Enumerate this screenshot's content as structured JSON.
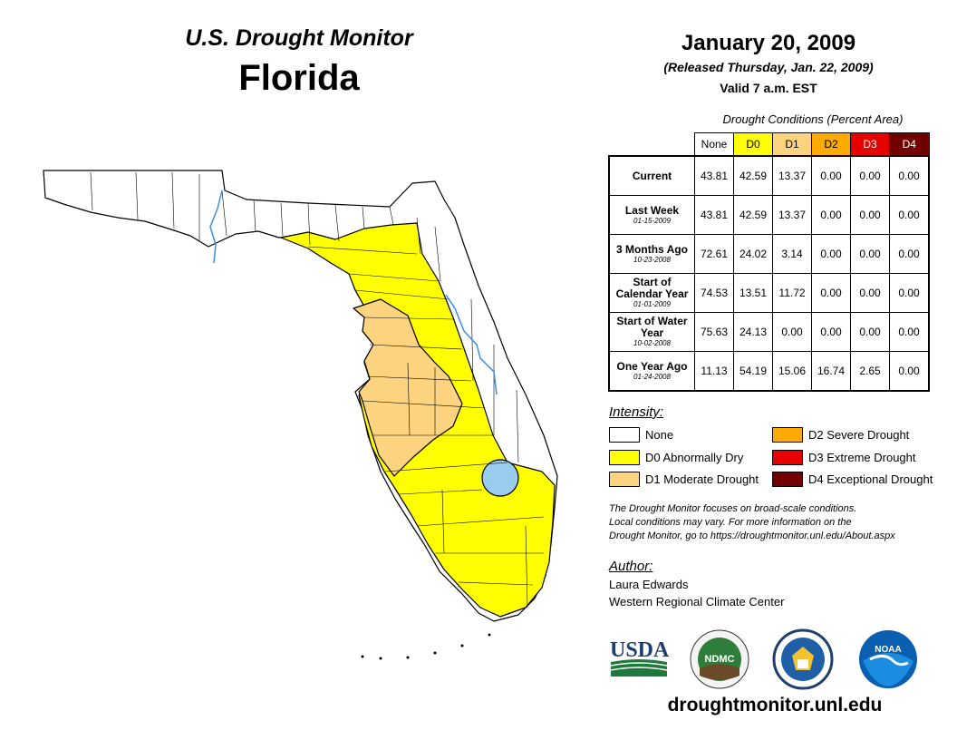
{
  "header": {
    "monitor_title": "U.S. Drought Monitor",
    "state": "Florida",
    "date": "January 20, 2009",
    "released": "(Released Thursday, Jan. 22, 2009)",
    "valid": "Valid 7 a.m. EST"
  },
  "table": {
    "caption": "Drought Conditions (Percent Area)",
    "columns": [
      "None",
      "D0",
      "D1",
      "D2",
      "D3",
      "D4"
    ],
    "rows": [
      {
        "label": "Current",
        "date": "",
        "values": [
          "43.81",
          "42.59",
          "13.37",
          "0.00",
          "0.00",
          "0.00"
        ]
      },
      {
        "label": "Last Week",
        "date": "01-15-2009",
        "values": [
          "43.81",
          "42.59",
          "13.37",
          "0.00",
          "0.00",
          "0.00"
        ]
      },
      {
        "label": "3 Months Ago",
        "date": "10-23-2008",
        "values": [
          "72.61",
          "24.02",
          "3.14",
          "0.00",
          "0.00",
          "0.00"
        ]
      },
      {
        "label": "Start of Calendar Year",
        "date": "01-01-2009",
        "values": [
          "74.53",
          "13.51",
          "11.72",
          "0.00",
          "0.00",
          "0.00"
        ]
      },
      {
        "label": "Start of Water Year",
        "date": "10-02-2008",
        "values": [
          "75.63",
          "24.13",
          "0.00",
          "0.00",
          "0.00",
          "0.00"
        ]
      },
      {
        "label": "One Year Ago",
        "date": "01-24-2008",
        "values": [
          "11.13",
          "54.19",
          "15.06",
          "16.74",
          "2.65",
          "0.00"
        ]
      }
    ]
  },
  "legend": {
    "title": "Intensity:",
    "items": [
      {
        "label": "None",
        "color": "#ffffff"
      },
      {
        "label": "D0 Abnormally Dry",
        "color": "#ffff00"
      },
      {
        "label": "D1 Moderate Drought",
        "color": "#fcd37f"
      },
      {
        "label": "D2 Severe Drought",
        "color": "#ffaa00"
      },
      {
        "label": "D3 Extreme Drought",
        "color": "#e60000"
      },
      {
        "label": "D4 Exceptional Drought",
        "color": "#730000"
      }
    ]
  },
  "note": {
    "line1": "The Drought Monitor focuses on broad-scale conditions.",
    "line2": "Local conditions may vary. For more information on the",
    "line3": "Drought Monitor, go to https://droughtmonitor.unl.edu/About.aspx"
  },
  "author": {
    "title": "Author:",
    "name": "Laura Edwards",
    "org": "Western Regional Climate Center"
  },
  "logos": {
    "usda": "USDA",
    "ndmc": "NDMC",
    "noaa": "NOAA",
    "doc": "doc-seal-icon"
  },
  "url": "droughtmonitor.unl.edu",
  "colors": {
    "water": "#99ccee",
    "river": "#3a8ee6",
    "d0": "#ffff00",
    "d1": "#fcd37f"
  }
}
